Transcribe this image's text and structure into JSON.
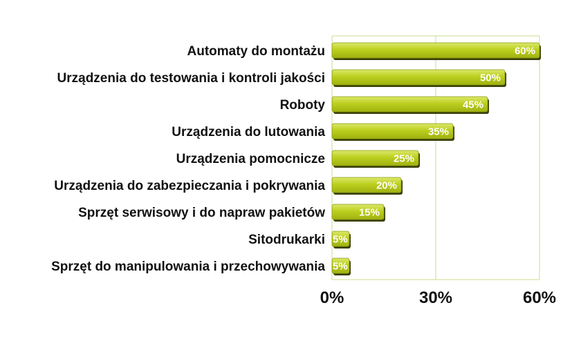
{
  "chart_data": {
    "type": "bar",
    "orientation": "horizontal",
    "categories": [
      "Automaty do montażu",
      "Urządzenia do testowania i kontroli jakości",
      "Roboty",
      "Urządzenia do lutowania",
      "Urządzenia pomocnicze",
      "Urządzenia do zabezpieczania i pokrywania",
      "Sprzęt serwisowy i do napraw pakietów",
      "Sitodrukarki",
      "Sprzęt do manipulowania i przechowywania"
    ],
    "values": [
      60,
      50,
      45,
      35,
      25,
      20,
      15,
      5,
      5
    ],
    "value_labels": [
      "60%",
      "50%",
      "45%",
      "35%",
      "25%",
      "20%",
      "15%",
      "5%",
      "5%"
    ],
    "xlim": [
      0,
      60
    ],
    "x_ticks": [
      0,
      30,
      60
    ],
    "x_tick_labels": [
      "0%",
      "30%",
      "60%"
    ],
    "grid": true,
    "legend": "none",
    "title": "",
    "xlabel": "",
    "ylabel": "",
    "colors": {
      "bar": "#bccf1f",
      "bar_highlight": "#dbe86a",
      "bar_shadow": "#3a3f0a",
      "grid": "#c8dc8c",
      "value_text": "#ffffff"
    }
  }
}
